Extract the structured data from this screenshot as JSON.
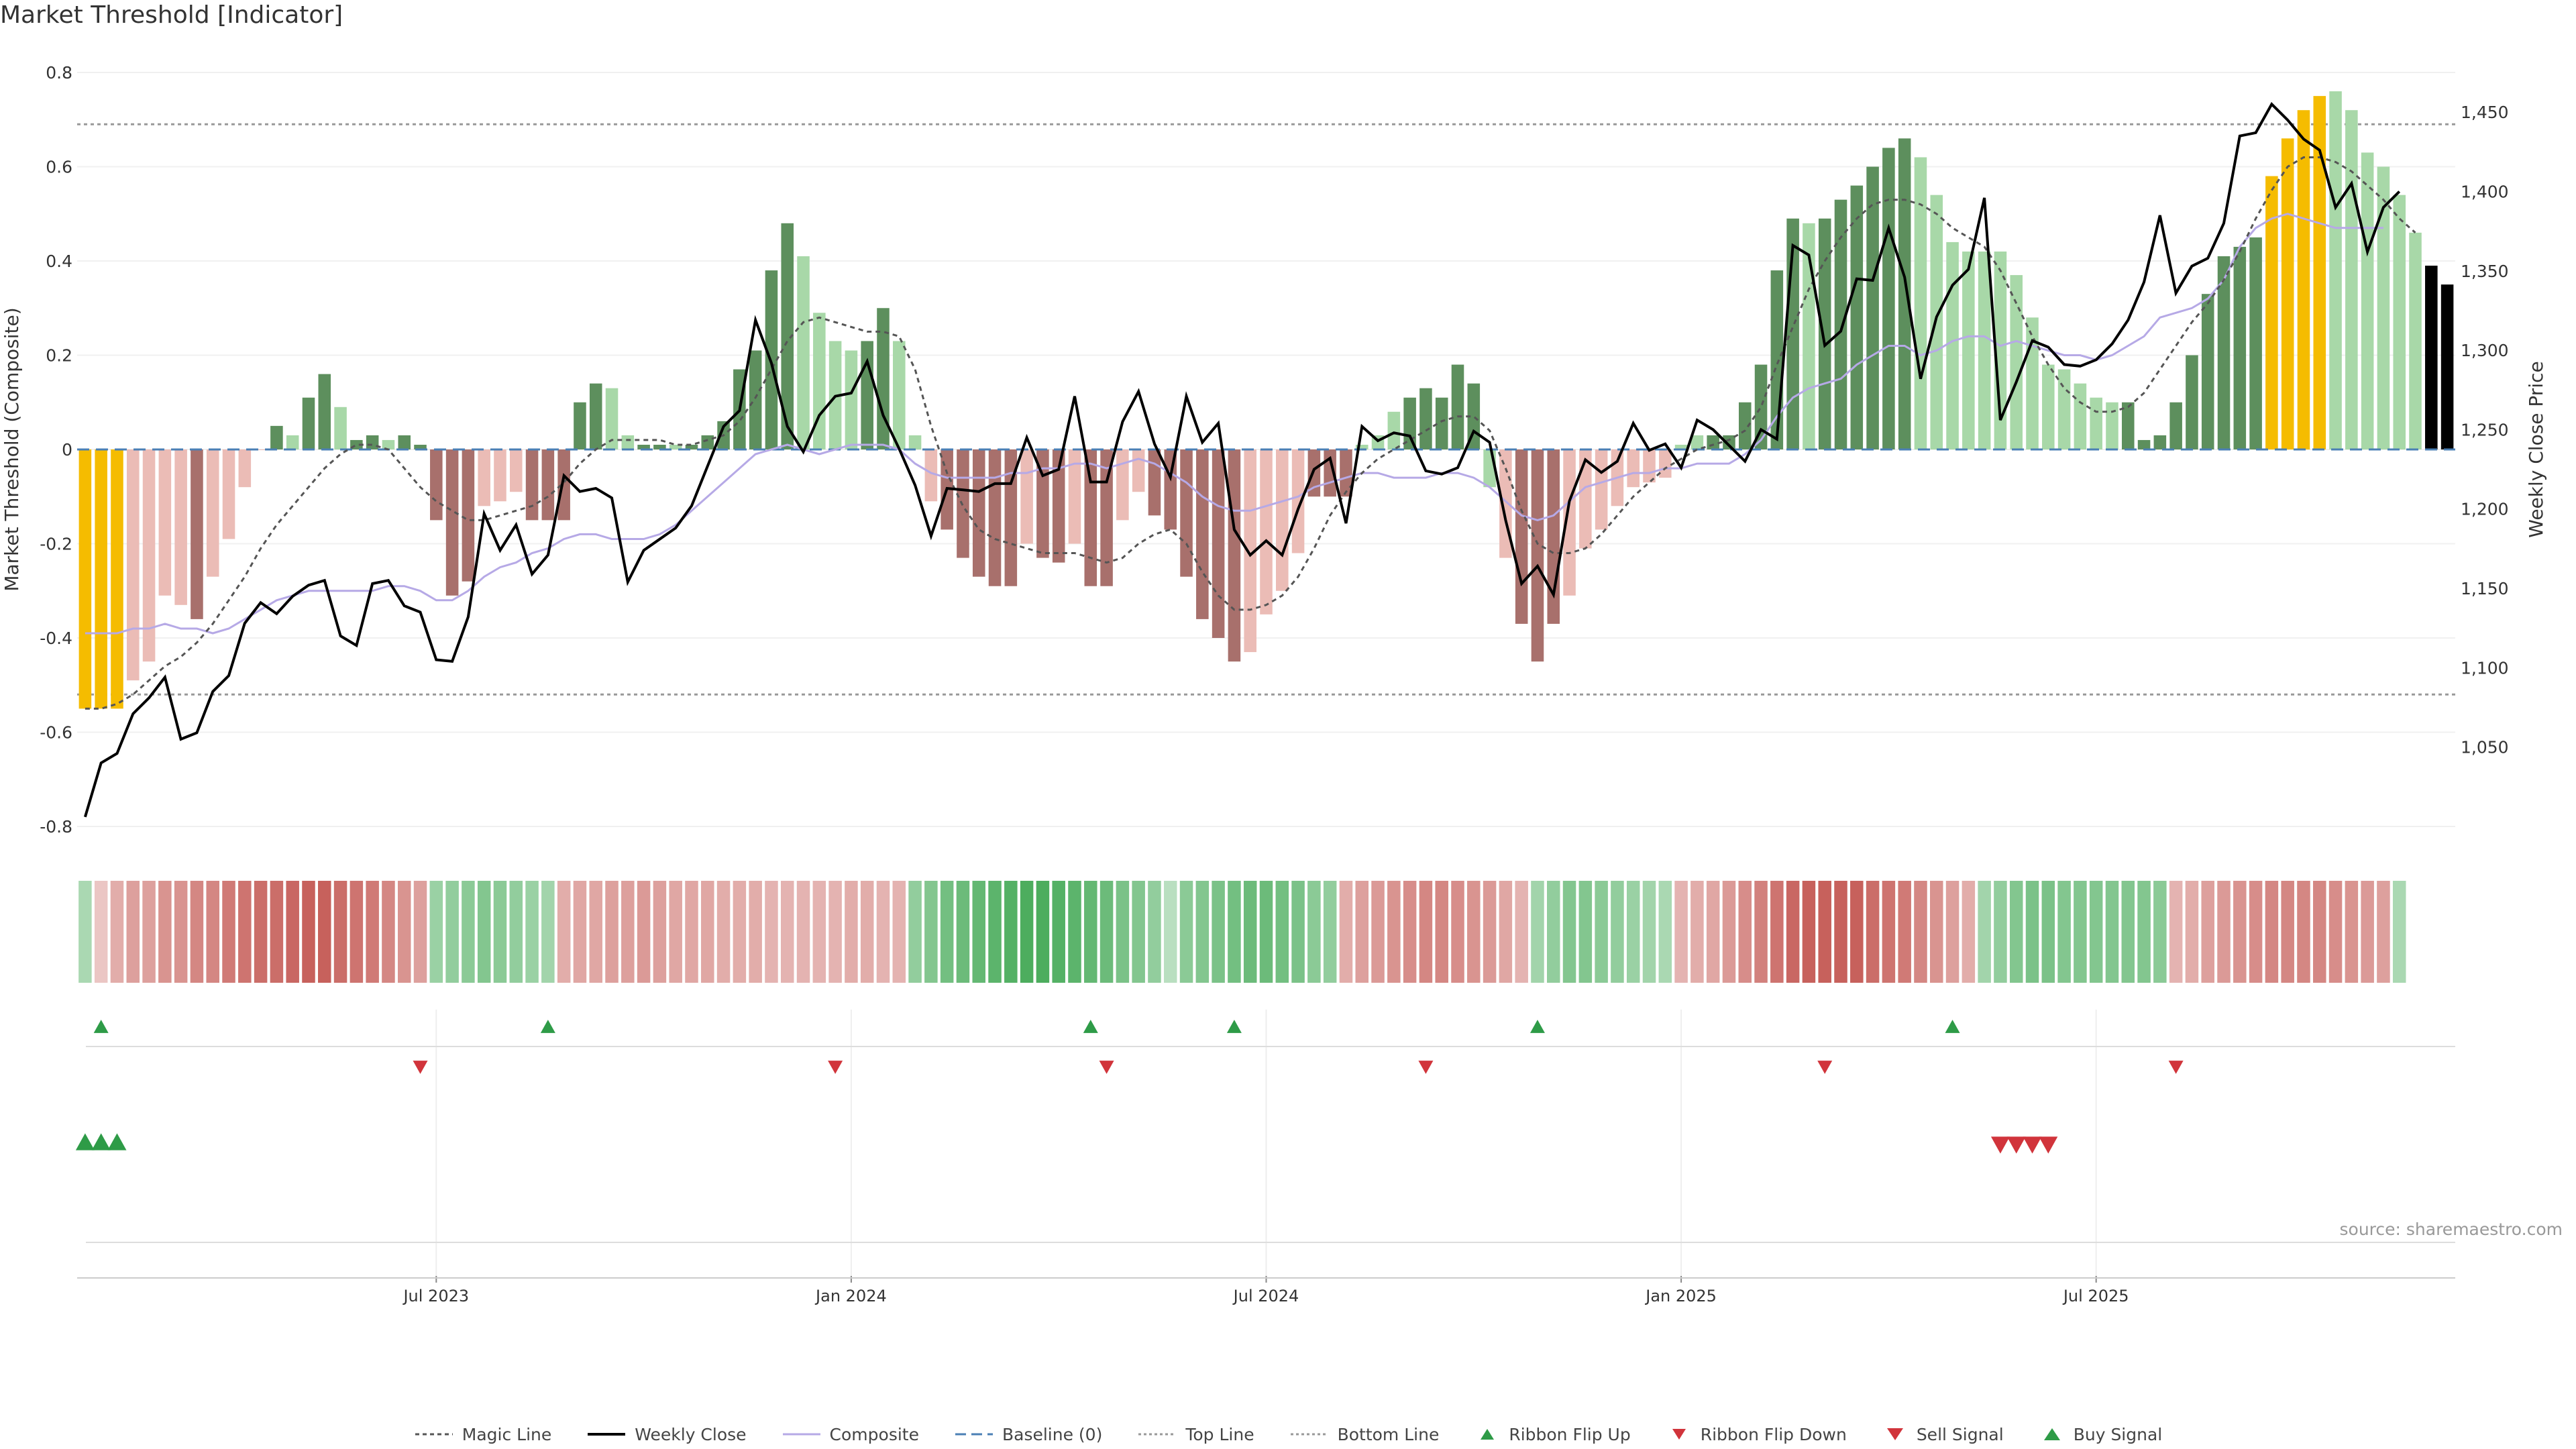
{
  "chart_data": {
    "type": "bar+line",
    "title": "Market Threshold [Indicator]",
    "ylabel_left": "Market Threshold (Composite)",
    "ylabel_right": "Weekly Close Price",
    "ylim_left": [
      -0.8,
      0.8
    ],
    "ylim_right": [
      1000,
      1475
    ],
    "left_ticks": [
      0.8,
      0.6,
      0.4,
      0.2,
      0,
      -0.2,
      -0.4,
      -0.6,
      -0.8
    ],
    "right_ticks": [
      1450,
      1400,
      1350,
      1300,
      1250,
      1200,
      1150,
      1100,
      1050
    ],
    "x_ticks": [
      {
        "label": "Jul 2023",
        "week": 22
      },
      {
        "label": "Jan 2024",
        "week": 48
      },
      {
        "label": "Jul 2024",
        "week": 74
      },
      {
        "label": "Jan 2025",
        "week": 100
      },
      {
        "label": "Jul 2025",
        "week": 126
      }
    ],
    "start_date": "2023-01-27",
    "top_line": 0.69,
    "bottom_line": -0.52,
    "baseline": 0,
    "bars": [
      -0.55,
      -0.55,
      -0.55,
      -0.49,
      -0.45,
      -0.31,
      -0.33,
      -0.36,
      -0.27,
      -0.19,
      -0.08,
      0,
      0.05,
      0.03,
      0.11,
      0.16,
      0.09,
      0.02,
      0.03,
      0.02,
      0.03,
      0.01,
      -0.15,
      -0.31,
      -0.28,
      -0.12,
      -0.11,
      -0.09,
      -0.15,
      -0.15,
      -0.15,
      0.1,
      0.14,
      0.13,
      0.03,
      0.01,
      0.01,
      0.01,
      0.01,
      0.03,
      0.06,
      0.17,
      0.21,
      0.38,
      0.48,
      0.41,
      0.29,
      0.23,
      0.21,
      0.23,
      0.3,
      0.23,
      0.03,
      -0.11,
      -0.17,
      -0.23,
      -0.27,
      -0.29,
      -0.29,
      -0.2,
      -0.23,
      -0.24,
      -0.2,
      -0.29,
      -0.29,
      -0.15,
      -0.09,
      -0.14,
      -0.17,
      -0.27,
      -0.36,
      -0.4,
      -0.45,
      -0.43,
      -0.35,
      -0.3,
      -0.22,
      -0.1,
      -0.1,
      -0.1,
      0.01,
      0.03,
      0.08,
      0.11,
      0.13,
      0.11,
      0.18,
      0.14,
      -0.08,
      -0.23,
      -0.37,
      -0.45,
      -0.37,
      -0.31,
      -0.21,
      -0.17,
      -0.12,
      -0.08,
      -0.07,
      -0.06,
      0.01,
      0.03,
      0.03,
      0.03,
      0.1,
      0.18,
      0.38,
      0.49,
      0.48,
      0.49,
      0.53,
      0.56,
      0.6,
      0.64,
      0.66,
      0.62,
      0.54,
      0.44,
      0.42,
      0.42,
      0.42,
      0.37,
      0.28,
      0.18,
      0.17,
      0.14,
      0.11,
      0.1,
      0.1,
      0.02,
      0.03,
      0.1,
      0.2,
      0.33,
      0.41,
      0.43,
      0.45,
      0.58,
      0.66,
      0.72,
      0.75,
      0.76,
      0.72,
      0.63,
      0.6,
      0.54,
      0.46,
      0.39,
      0.35
    ],
    "bar_colors": [
      "yellow",
      "yellow",
      "yellow",
      "light_red",
      "light_red",
      "light_red",
      "light_red",
      "dark_red",
      "light_red",
      "light_red",
      "light_red",
      "light_red",
      "dark_green",
      "light_green",
      "dark_green",
      "dark_green",
      "light_green",
      "dark_green",
      "dark_green",
      "light_green",
      "dark_green",
      "dark_green",
      "dark_red",
      "dark_red",
      "dark_red",
      "light_red",
      "light_red",
      "light_red",
      "dark_red",
      "dark_red",
      "dark_red",
      "dark_green",
      "dark_green",
      "light_green",
      "light_green",
      "dark_green",
      "dark_green",
      "light_green",
      "dark_green",
      "dark_green",
      "dark_green",
      "dark_green",
      "dark_green",
      "dark_green",
      "dark_green",
      "light_green",
      "light_green",
      "light_green",
      "light_green",
      "dark_green",
      "dark_green",
      "light_green",
      "light_green",
      "light_red",
      "dark_red",
      "dark_red",
      "dark_red",
      "dark_red",
      "dark_red",
      "light_red",
      "dark_red",
      "dark_red",
      "light_red",
      "dark_red",
      "dark_red",
      "light_red",
      "light_red",
      "dark_red",
      "dark_red",
      "dark_red",
      "dark_red",
      "dark_red",
      "dark_red",
      "light_red",
      "light_red",
      "light_red",
      "light_red",
      "dark_red",
      "dark_red",
      "dark_red",
      "light_green",
      "light_green",
      "light_green",
      "dark_green",
      "dark_green",
      "dark_green",
      "dark_green",
      "dark_green",
      "light_green",
      "light_red",
      "dark_red",
      "dark_red",
      "dark_red",
      "light_red",
      "light_red",
      "light_red",
      "light_red",
      "light_red",
      "light_red",
      "light_red",
      "light_green",
      "light_green",
      "dark_green",
      "dark_green",
      "dark_green",
      "dark_green",
      "dark_green",
      "dark_green",
      "light_green",
      "dark_green",
      "dark_green",
      "dark_green",
      "dark_green",
      "dark_green",
      "dark_green",
      "light_green",
      "light_green",
      "light_green",
      "light_green",
      "light_green",
      "light_green",
      "light_green",
      "light_green",
      "light_green",
      "light_green",
      "light_green",
      "light_green",
      "light_green",
      "dark_green",
      "dark_green",
      "dark_green",
      "dark_green",
      "dark_green",
      "dark_green",
      "dark_green",
      "dark_green",
      "dark_green",
      "yellow",
      "yellow",
      "yellow",
      "yellow",
      "light_green",
      "light_green",
      "light_green",
      "light_green",
      "light_green",
      "light_green"
    ],
    "weekly_close": [
      1006,
      1040,
      1046,
      1071,
      1081,
      1094,
      1055,
      1059,
      1085,
      1095,
      1128,
      1141,
      1134,
      1145,
      1152,
      1155,
      1120,
      1114,
      1153,
      1155,
      1139,
      1135,
      1105,
      1104,
      1132,
      1197,
      1174,
      1190,
      1159,
      1171,
      1221,
      1211,
      1213,
      1207,
      1154,
      1174,
      1181,
      1188,
      1202,
      1227,
      1252,
      1262,
      1319,
      1292,
      1252,
      1236,
      1259,
      1271,
      1273,
      1293,
      1259,
      1238,
      1215,
      1183,
      1213,
      1212,
      1211,
      1216,
      1216,
      1245,
      1221,
      1225,
      1271,
      1217,
      1217,
      1255,
      1274,
      1241,
      1220,
      1271,
      1242,
      1254,
      1187,
      1171,
      1180,
      1171,
      1200,
      1225,
      1232,
      1191,
      1252,
      1243,
      1248,
      1246,
      1224,
      1222,
      1226,
      1249,
      1242,
      1193,
      1153,
      1164,
      1146,
      1205,
      1231,
      1223,
      1230,
      1254,
      1237,
      1241,
      1226,
      1256,
      1250,
      1240,
      1230,
      1250,
      1244,
      1366,
      1360,
      1303,
      1312,
      1345,
      1344,
      1377,
      1346,
      1282,
      1321,
      1341,
      1351,
      1396,
      1256,
      1280,
      1306,
      1302,
      1291,
      1290,
      1294,
      1304,
      1319,
      1343,
      1385,
      1336,
      1353,
      1358,
      1380,
      1435,
      1437,
      1455,
      1445,
      1433,
      1426,
      1390,
      1405,
      1362,
      1390,
      1400
    ],
    "magic_line": [
      -0.55,
      -0.55,
      -0.54,
      -0.52,
      -0.49,
      -0.46,
      -0.44,
      -0.41,
      -0.37,
      -0.32,
      -0.27,
      -0.21,
      -0.16,
      -0.12,
      -0.08,
      -0.04,
      -0.01,
      0.01,
      0.01,
      0.0,
      -0.04,
      -0.08,
      -0.11,
      -0.13,
      -0.15,
      -0.15,
      -0.14,
      -0.13,
      -0.12,
      -0.1,
      -0.07,
      -0.03,
      0.0,
      0.02,
      0.02,
      0.02,
      0.02,
      0.01,
      0.01,
      0.02,
      0.03,
      0.06,
      0.11,
      0.17,
      0.23,
      0.27,
      0.28,
      0.27,
      0.26,
      0.25,
      0.25,
      0.24,
      0.17,
      0.05,
      -0.05,
      -0.12,
      -0.17,
      -0.19,
      -0.2,
      -0.21,
      -0.22,
      -0.22,
      -0.22,
      -0.23,
      -0.24,
      -0.23,
      -0.2,
      -0.18,
      -0.17,
      -0.2,
      -0.26,
      -0.31,
      -0.34,
      -0.34,
      -0.33,
      -0.31,
      -0.27,
      -0.21,
      -0.14,
      -0.09,
      -0.05,
      -0.02,
      0.0,
      0.02,
      0.04,
      0.06,
      0.07,
      0.07,
      0.04,
      -0.04,
      -0.13,
      -0.2,
      -0.22,
      -0.22,
      -0.21,
      -0.18,
      -0.14,
      -0.1,
      -0.07,
      -0.04,
      -0.02,
      0.0,
      0.01,
      0.02,
      0.04,
      0.09,
      0.18,
      0.26,
      0.34,
      0.4,
      0.45,
      0.49,
      0.52,
      0.53,
      0.53,
      0.52,
      0.5,
      0.47,
      0.45,
      0.43,
      0.38,
      0.31,
      0.24,
      0.18,
      0.13,
      0.1,
      0.08,
      0.08,
      0.09,
      0.12,
      0.17,
      0.22,
      0.27,
      0.31,
      0.36,
      0.42,
      0.49,
      0.55,
      0.6,
      0.62,
      0.62,
      0.61,
      0.59,
      0.56,
      0.53,
      0.49,
      0.46
    ],
    "composite": [
      -0.39,
      -0.39,
      -0.39,
      -0.38,
      -0.38,
      -0.37,
      -0.38,
      -0.38,
      -0.39,
      -0.38,
      -0.36,
      -0.34,
      -0.32,
      -0.31,
      -0.3,
      -0.3,
      -0.3,
      -0.3,
      -0.3,
      -0.29,
      -0.29,
      -0.3,
      -0.32,
      -0.32,
      -0.3,
      -0.27,
      -0.25,
      -0.24,
      -0.22,
      -0.21,
      -0.19,
      -0.18,
      -0.18,
      -0.19,
      -0.19,
      -0.19,
      -0.18,
      -0.16,
      -0.13,
      -0.1,
      -0.07,
      -0.04,
      -0.01,
      0.0,
      0.01,
      0.0,
      -0.01,
      0.0,
      0.01,
      0.01,
      0.01,
      0.0,
      -0.03,
      -0.05,
      -0.06,
      -0.06,
      -0.06,
      -0.06,
      -0.05,
      -0.05,
      -0.04,
      -0.04,
      -0.03,
      -0.03,
      -0.04,
      -0.03,
      -0.02,
      -0.03,
      -0.05,
      -0.07,
      -0.1,
      -0.12,
      -0.13,
      -0.13,
      -0.12,
      -0.11,
      -0.1,
      -0.08,
      -0.07,
      -0.06,
      -0.05,
      -0.05,
      -0.06,
      -0.06,
      -0.06,
      -0.05,
      -0.05,
      -0.06,
      -0.08,
      -0.11,
      -0.14,
      -0.15,
      -0.14,
      -0.11,
      -0.08,
      -0.07,
      -0.06,
      -0.05,
      -0.05,
      -0.04,
      -0.04,
      -0.03,
      -0.03,
      -0.03,
      -0.01,
      0.02,
      0.07,
      0.11,
      0.13,
      0.14,
      0.15,
      0.18,
      0.2,
      0.22,
      0.22,
      0.2,
      0.21,
      0.23,
      0.24,
      0.24,
      0.22,
      0.23,
      0.22,
      0.21,
      0.2,
      0.2,
      0.19,
      0.2,
      0.22,
      0.24,
      0.28,
      0.29,
      0.3,
      0.32,
      0.36,
      0.43,
      0.47,
      0.49,
      0.5,
      0.49,
      0.48,
      0.47,
      0.47,
      0.47,
      0.47
    ],
    "ribbon": [
      0.3,
      -0.2,
      -0.4,
      -0.5,
      -0.5,
      -0.6,
      -0.6,
      -0.7,
      -0.7,
      -0.8,
      -0.85,
      -0.9,
      -0.9,
      -0.95,
      -1.0,
      -1.0,
      -0.9,
      -0.85,
      -0.8,
      -0.7,
      -0.6,
      -0.5,
      0.4,
      0.45,
      0.5,
      0.55,
      0.5,
      0.45,
      0.4,
      0.35,
      -0.4,
      -0.45,
      -0.45,
      -0.5,
      -0.5,
      -0.55,
      -0.5,
      -0.45,
      -0.45,
      -0.45,
      -0.4,
      -0.4,
      -0.4,
      -0.35,
      -0.35,
      -0.35,
      -0.35,
      -0.35,
      -0.4,
      -0.4,
      -0.35,
      -0.35,
      0.45,
      0.55,
      0.65,
      0.7,
      0.75,
      0.8,
      0.85,
      0.9,
      0.9,
      0.85,
      0.8,
      0.75,
      0.7,
      0.6,
      0.55,
      0.45,
      0.2,
      0.5,
      0.55,
      0.6,
      0.65,
      0.7,
      0.7,
      0.65,
      0.6,
      0.5,
      0.45,
      -0.4,
      -0.5,
      -0.55,
      -0.6,
      -0.65,
      -0.7,
      -0.7,
      -0.65,
      -0.6,
      -0.55,
      -0.45,
      -0.35,
      0.35,
      0.45,
      0.55,
      0.55,
      0.5,
      0.45,
      0.4,
      0.35,
      0.3,
      -0.35,
      -0.4,
      -0.45,
      -0.55,
      -0.65,
      -0.75,
      -0.85,
      -0.95,
      -1.0,
      -1.0,
      -1.0,
      -1.0,
      -0.9,
      -0.85,
      -0.8,
      -0.7,
      -0.6,
      -0.5,
      -0.4,
      0.35,
      0.45,
      0.55,
      0.6,
      0.6,
      0.55,
      0.55,
      0.55,
      0.55,
      0.55,
      0.55,
      0.5,
      -0.35,
      -0.4,
      -0.5,
      -0.55,
      -0.6,
      -0.65,
      -0.7,
      -0.7,
      -0.7,
      -0.7,
      -0.65,
      -0.6,
      -0.55,
      -0.5,
      0.3
    ],
    "ribbon_flip_up": [
      1,
      29,
      63,
      72,
      91,
      117
    ],
    "ribbon_flip_down": [
      21,
      47,
      64,
      84,
      109,
      131
    ],
    "buy_signal": [
      0,
      1,
      2
    ],
    "sell_signal": [
      120,
      121,
      122,
      123
    ],
    "legend": [
      "Magic Line",
      "Weekly Close",
      "Composite",
      "Baseline (0)",
      "Top Line",
      "Bottom Line",
      "Ribbon Flip Up",
      "Ribbon Flip Down",
      "Sell Signal",
      "Buy Signal"
    ],
    "grid": true,
    "legend_position": "bottom-center"
  },
  "source_text": "source: sharemaestro.com",
  "colors": {
    "yellow": "#f5bc00",
    "dark_green": "#5d8f5d",
    "light_green": "#a8d8a8",
    "dark_red": "#a8706c",
    "light_red": "#ebbcb6",
    "weekly_close": "#000000",
    "composite": "#b6a9e6",
    "magic_line": "#555555",
    "baseline": "#4a7fb5",
    "ribbon_pos": "#3da650",
    "ribbon_neg": "#c7615c",
    "signal_up": "#2e9b47",
    "signal_down": "#d1343b"
  }
}
